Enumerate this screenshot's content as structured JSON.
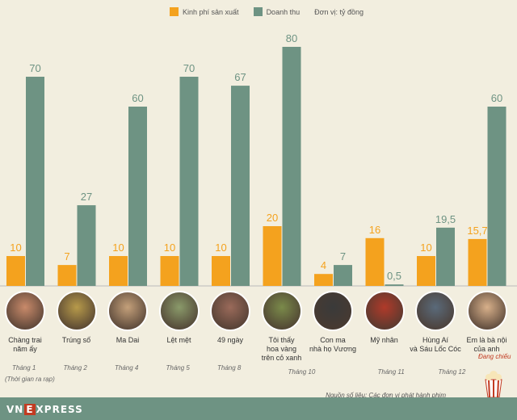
{
  "legend": {
    "budget": "Kinh phí sản xuất",
    "revenue": "Doanh thu",
    "unit": "Đơn vị: tỷ đồng"
  },
  "colors": {
    "budget": "#f4a21e",
    "revenue": "#6e9383",
    "background": "#f2eedf"
  },
  "chart_data": {
    "type": "bar",
    "categories": [
      "Chàng trai năm ấy",
      "Trúng số",
      "Ma Dai",
      "Lệt mệt",
      "49 ngày",
      "Tôi thấy hoa vàng trên cỏ xanh",
      "Con ma nhà họ Vương",
      "Mỹ nhân",
      "Hùng Aí và Sáu Lốc Cóc",
      "Em là bà nội của anh"
    ],
    "series": [
      {
        "name": "Kinh phí sản xuất",
        "values": [
          10,
          7,
          10,
          10,
          10,
          20,
          4,
          16,
          10,
          15.7
        ],
        "labels": [
          "10",
          "7",
          "10",
          "10",
          "10",
          "20",
          "4",
          "16",
          "10",
          "15,7"
        ]
      },
      {
        "name": "Doanh thu",
        "values": [
          70,
          27,
          60,
          70,
          67,
          80,
          7,
          0.5,
          19.5,
          60
        ],
        "labels": [
          "70",
          "27",
          "60",
          "70",
          "67",
          "80",
          "7",
          "0,5",
          "19,5",
          "60"
        ]
      }
    ],
    "ylim": [
      0,
      80
    ]
  },
  "movies": [
    {
      "name": "Chàng trai\nnăm ấy",
      "month": "Tháng 1",
      "color": "#c98a6a"
    },
    {
      "name": "Trúng số",
      "month": "Tháng 2",
      "color": "#b79a4a"
    },
    {
      "name": "Ma Dai",
      "month": "Tháng 4",
      "color": "#c4a07a"
    },
    {
      "name": "Lệt mệt",
      "month": "Tháng 5",
      "color": "#8a9a6a"
    },
    {
      "name": "49 ngày",
      "month": "Tháng 8",
      "color": "#9a6a5a"
    },
    {
      "name": "Tôi thấy\nhoa vàng\ntrên cỏ xanh",
      "month": "Tháng 10",
      "color": "#7a8a4a"
    },
    {
      "name": "Con ma\nnhà họ Vương",
      "month": "",
      "color": "#3a3a3a"
    },
    {
      "name": "Mỹ nhân",
      "month": "Tháng 11",
      "color": "#b03a2a"
    },
    {
      "name": "Hùng Aí\nvà Sáu Lốc Cóc",
      "month": "",
      "color": "#5a6a7a"
    },
    {
      "name": "Em là bà nội\ncủa anh",
      "month": "Tháng 12",
      "color": "#d8b08a"
    }
  ],
  "notes": {
    "first_release": "(Thời gian ra rạp)",
    "showing": "Đang chiếu",
    "source": "Nguồn số liệu: Các đơn vị phát hành phim"
  },
  "footer": {
    "logo_left": "VN",
    "logo_mid": "E",
    "logo_right": "XPRESS"
  }
}
